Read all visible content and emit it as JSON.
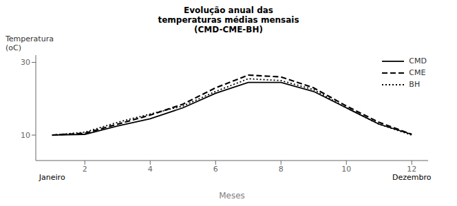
{
  "chart_data": {
    "type": "line",
    "title": "Evolução anual das\ntemperaturas médias mensais\n(CMD-CME-BH)",
    "xlabel": "Meses",
    "ylabel": "Temperatura\n(oC)",
    "x": [
      1,
      2,
      3,
      4,
      5,
      6,
      7,
      8,
      9,
      10,
      11,
      12
    ],
    "series": [
      {
        "name": "CMD",
        "color": "#000000",
        "line_style": "solid",
        "values": [
          10.0,
          10.2,
          12.5,
          14.5,
          17.5,
          21.5,
          24.5,
          24.5,
          22.0,
          17.5,
          13.0,
          10.2
        ]
      },
      {
        "name": "CME",
        "color": "#000000",
        "line_style": "dashed",
        "values": [
          10.0,
          10.5,
          13.0,
          15.5,
          18.5,
          23.0,
          26.5,
          26.0,
          23.0,
          18.0,
          13.5,
          10.2
        ]
      },
      {
        "name": "BH",
        "color": "#000000",
        "line_style": "dotted",
        "values": [
          10.0,
          10.8,
          13.5,
          15.8,
          18.0,
          22.0,
          25.5,
          25.0,
          22.5,
          17.5,
          13.0,
          10.0
        ]
      }
    ],
    "xlim": [
      0.5,
      12.5
    ],
    "ylim": [
      3,
      32
    ],
    "xticks": [
      2,
      4,
      6,
      8,
      10,
      12
    ],
    "yticks": [
      10,
      30
    ],
    "annotations": [
      {
        "text": "Janeiro",
        "x": 1
      },
      {
        "text": "Dezembro",
        "x": 12
      }
    ],
    "legend": "right",
    "grid": false
  }
}
